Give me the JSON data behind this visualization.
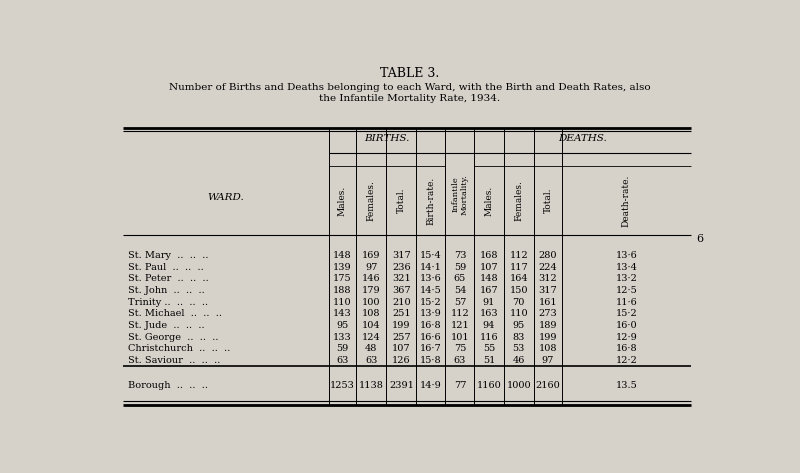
{
  "title": "TABLE 3.",
  "subtitle": "Number of Births and Deaths belonging to each Ward, with the Birth and Death Rates, also\nthe Infantile Mortality Rate, 1934.",
  "bg_color": "#d6d2ca",
  "wards": [
    "St. Mary",
    "St. Paul",
    "St. Peter",
    "St. John",
    "Trinity ..",
    "St. Michael",
    "St. Jude",
    "St. George",
    "Christchurch",
    "St. Saviour"
  ],
  "births_males": [
    148,
    139,
    175,
    188,
    110,
    143,
    95,
    133,
    59,
    63
  ],
  "births_females": [
    169,
    97,
    146,
    179,
    100,
    108,
    104,
    124,
    48,
    63
  ],
  "births_total": [
    317,
    236,
    321,
    367,
    210,
    251,
    199,
    257,
    107,
    126
  ],
  "birth_rate": [
    "15·4",
    "14·1",
    "13·6",
    "14·5",
    "15·2",
    "13·9",
    "16·8",
    "16·6",
    "16·7",
    "15·8"
  ],
  "inf_mortality": [
    73,
    59,
    65,
    54,
    57,
    112,
    121,
    101,
    75,
    63
  ],
  "deaths_males": [
    168,
    107,
    148,
    167,
    91,
    163,
    94,
    116,
    55,
    51
  ],
  "deaths_females": [
    112,
    117,
    164,
    150,
    70,
    110,
    95,
    83,
    53,
    46
  ],
  "deaths_total": [
    280,
    224,
    312,
    317,
    161,
    273,
    189,
    199,
    108,
    97
  ],
  "death_rate": [
    "13·6",
    "13·4",
    "13·2",
    "12·5",
    "11·6",
    "15·2",
    "16·0",
    "12·9",
    "16·8",
    "12·2"
  ],
  "borough_births_males": 1253,
  "borough_births_females": 1138,
  "borough_births_total": 2391,
  "borough_birth_rate": "14·9",
  "borough_inf_mortality": 77,
  "borough_deaths_males": 1160,
  "borough_deaths_females": 1000,
  "borough_deaths_total": 2160,
  "borough_death_rate": "13.5",
  "page_number": "6"
}
